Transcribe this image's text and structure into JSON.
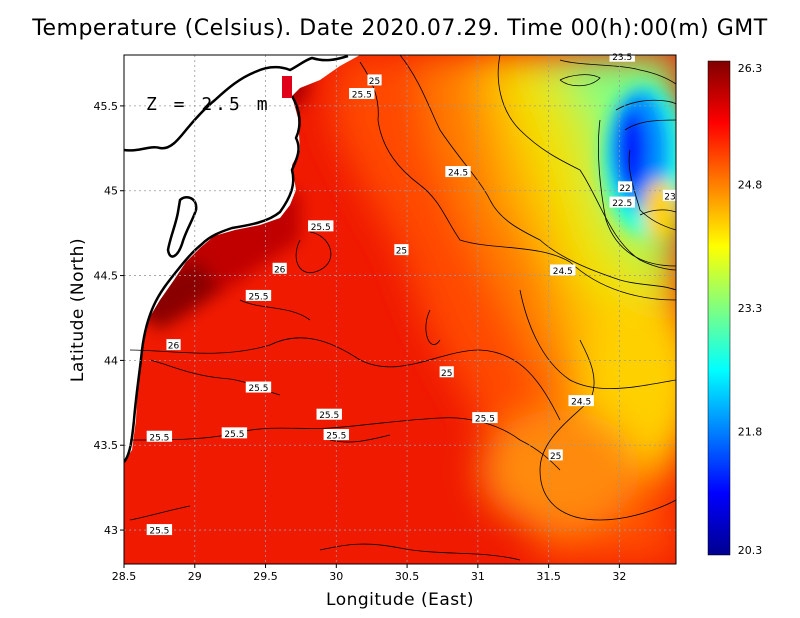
{
  "title": "Temperature (Celsius). Date 2020.07.29. Time 00(h):00(m) GMT",
  "xlabel": "Longitude (East)",
  "ylabel": "Latitude (North)",
  "depth_label": "Z = 2.5 m",
  "chart_data": {
    "type": "heatmap",
    "variable": "sea surface temperature",
    "units": "Celsius",
    "xlim": [
      28.5,
      32.4
    ],
    "ylim": [
      42.8,
      45.8
    ],
    "x_ticks": [
      28.5,
      29,
      29.5,
      30,
      30.5,
      31,
      31.5,
      32
    ],
    "x_tick_labels": [
      "28.5",
      "29",
      "29.5",
      "30",
      "30.5",
      "31",
      "31.5",
      "32"
    ],
    "y_ticks": [
      43,
      43.5,
      44,
      44.5,
      45,
      45.5
    ],
    "y_tick_labels": [
      "43",
      "43.5",
      "44",
      "44.5",
      "45",
      "45.5"
    ],
    "grid": true,
    "colorbar": {
      "min": 20.3,
      "max": 26.3,
      "ticks": [
        26.3,
        24.8,
        23.3,
        21.8,
        20.3
      ],
      "tick_labels": [
        "26.3",
        "24.8",
        "23.3",
        "21.8",
        "20.3"
      ],
      "colors": [
        "#00008f",
        "#0000ff",
        "#0080ff",
        "#00ffff",
        "#80ff80",
        "#ffff00",
        "#ff8000",
        "#ff0000",
        "#800000"
      ]
    },
    "contour_labels": [
      {
        "lon": 30.27,
        "lat": 45.65,
        "text": "25"
      },
      {
        "lon": 30.18,
        "lat": 45.57,
        "text": "25.5"
      },
      {
        "lon": 30.86,
        "lat": 45.11,
        "text": "24.5"
      },
      {
        "lon": 29.89,
        "lat": 44.79,
        "text": "25.5"
      },
      {
        "lon": 30.46,
        "lat": 44.65,
        "text": "25"
      },
      {
        "lon": 29.6,
        "lat": 44.54,
        "text": "26"
      },
      {
        "lon": 29.45,
        "lat": 44.38,
        "text": "25.5"
      },
      {
        "lon": 28.85,
        "lat": 44.09,
        "text": "26"
      },
      {
        "lon": 31.6,
        "lat": 44.53,
        "text": "24.5"
      },
      {
        "lon": 32.02,
        "lat": 45.79,
        "text": "23.5"
      },
      {
        "lon": 32.04,
        "lat": 45.02,
        "text": "22"
      },
      {
        "lon": 32.02,
        "lat": 44.93,
        "text": "22.5"
      },
      {
        "lon": 32.36,
        "lat": 44.97,
        "text": "23"
      },
      {
        "lon": 30.78,
        "lat": 43.93,
        "text": "25"
      },
      {
        "lon": 29.45,
        "lat": 43.84,
        "text": "25.5"
      },
      {
        "lon": 31.73,
        "lat": 43.76,
        "text": "24.5"
      },
      {
        "lon": 29.95,
        "lat": 43.68,
        "text": "25.5"
      },
      {
        "lon": 31.05,
        "lat": 43.66,
        "text": "25.5"
      },
      {
        "lon": 29.28,
        "lat": 43.57,
        "text": "25.5"
      },
      {
        "lon": 30.0,
        "lat": 43.56,
        "text": "25.5"
      },
      {
        "lon": 28.75,
        "lat": 43.55,
        "text": "25.5"
      },
      {
        "lon": 31.55,
        "lat": 43.44,
        "text": "25"
      },
      {
        "lon": 28.75,
        "lat": 43.0,
        "text": "25.5"
      }
    ]
  }
}
